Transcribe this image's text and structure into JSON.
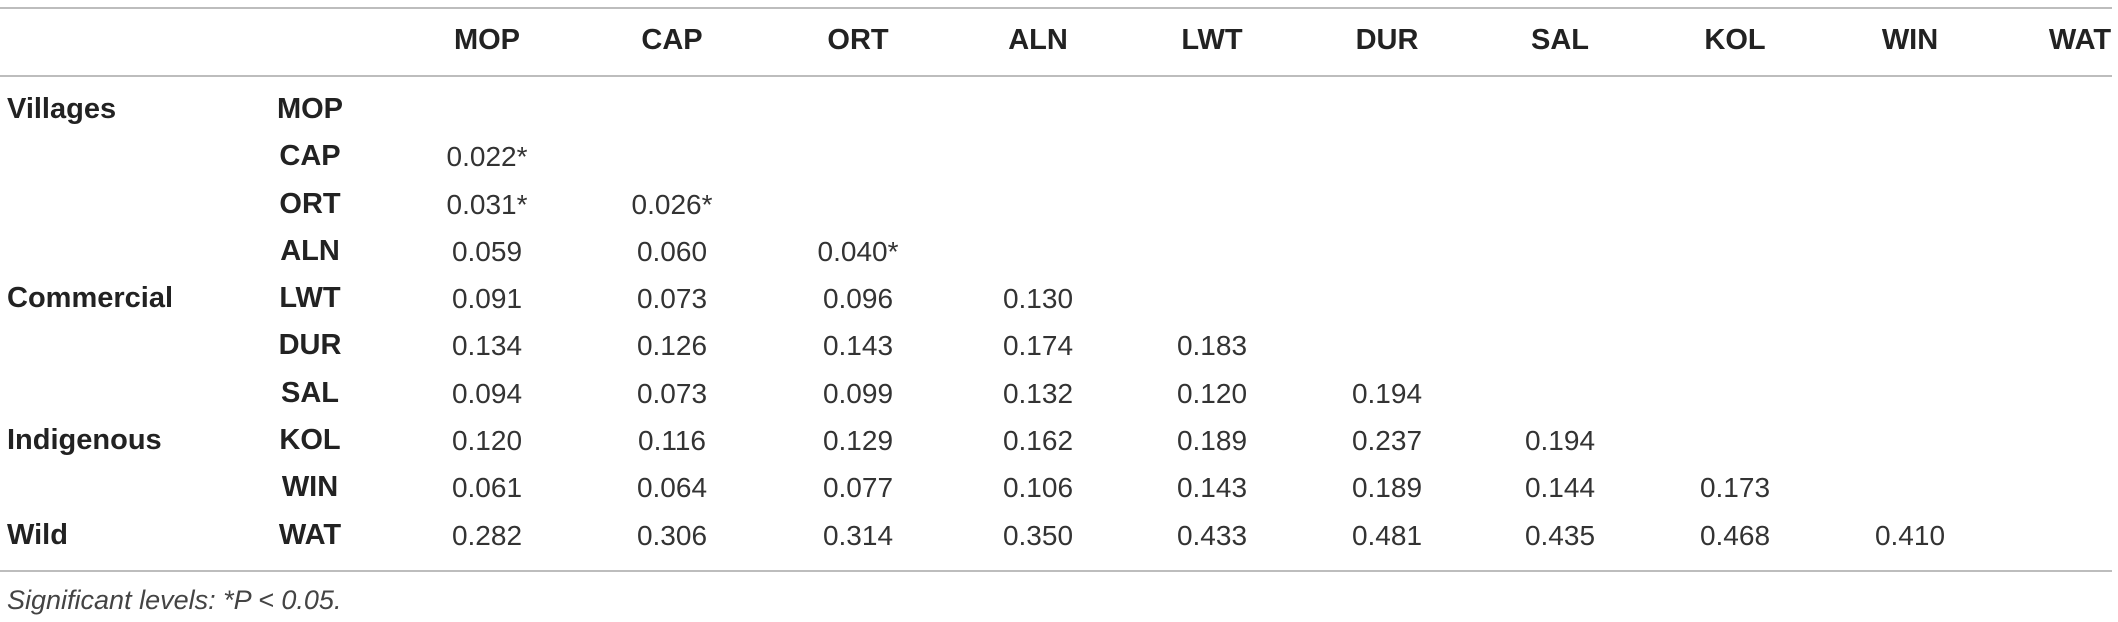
{
  "columns": [
    "MOP",
    "CAP",
    "ORT",
    "ALN",
    "LWT",
    "DUR",
    "SAL",
    "KOL",
    "WIN",
    "WAT"
  ],
  "rows": [
    {
      "group": "Villages",
      "label": "MOP",
      "values": []
    },
    {
      "group": "",
      "label": "CAP",
      "values": [
        "0.022*"
      ]
    },
    {
      "group": "",
      "label": "ORT",
      "values": [
        "0.031*",
        "0.026*"
      ]
    },
    {
      "group": "",
      "label": "ALN",
      "values": [
        "0.059",
        "0.060",
        "0.040*"
      ]
    },
    {
      "group": "Commercial",
      "label": "LWT",
      "values": [
        "0.091",
        "0.073",
        "0.096",
        "0.130"
      ]
    },
    {
      "group": "",
      "label": "DUR",
      "values": [
        "0.134",
        "0.126",
        "0.143",
        "0.174",
        "0.183"
      ]
    },
    {
      "group": "",
      "label": "SAL",
      "values": [
        "0.094",
        "0.073",
        "0.099",
        "0.132",
        "0.120",
        "0.194"
      ]
    },
    {
      "group": "Indigenous",
      "label": "KOL",
      "values": [
        "0.120",
        "0.116",
        "0.129",
        "0.162",
        "0.189",
        "0.237",
        "0.194"
      ]
    },
    {
      "group": "",
      "label": "WIN",
      "values": [
        "0.061",
        "0.064",
        "0.077",
        "0.106",
        "0.143",
        "0.189",
        "0.144",
        "0.173"
      ]
    },
    {
      "group": "Wild",
      "label": "WAT",
      "values": [
        "0.282",
        "0.306",
        "0.314",
        "0.350",
        "0.433",
        "0.481",
        "0.435",
        "0.468",
        "0.410"
      ]
    }
  ],
  "footnote": "Significant levels: *P < 0.05."
}
